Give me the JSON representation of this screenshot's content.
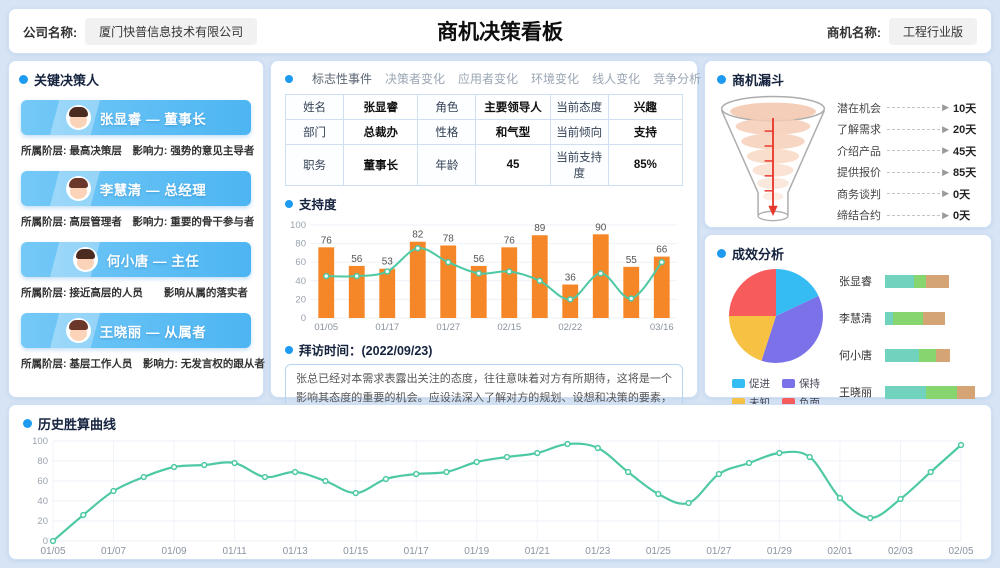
{
  "page": {
    "background": "#d7e4f5",
    "accent": "#1e9bf0"
  },
  "header": {
    "company_label": "公司名称:",
    "company_value": "厦门快普信息技术有限公司",
    "title": "商机决策看板",
    "opportunity_label": "商机名称:",
    "opportunity_value": "工程行业版"
  },
  "decision_panel": {
    "title": "关键决策人",
    "people": [
      {
        "banner": "张显睿 — 董事长",
        "info": "所属阶层: 最高决策层　影响力: 强势的意见主导者",
        "gender": "m"
      },
      {
        "banner": "李慧清 — 总经理",
        "info": "所属阶层: 高层管理者　影响力: 重要的骨干参与者",
        "gender": "f"
      },
      {
        "banner": "何小唐 — 主任",
        "info": "所属阶层: 接近高层的人员　　影响从属的落实者",
        "gender": "m"
      },
      {
        "banner": "王晓丽 — 从属者",
        "info": "所属阶层: 基层工作人员　影响力: 无发言权的跟从者",
        "gender": "f"
      }
    ]
  },
  "tabs_panel": {
    "tabs": [
      {
        "label": "标志性事件",
        "slug": "landmark-events",
        "active": true
      },
      {
        "label": "决策者变化",
        "slug": "decision-maker-change",
        "active": false
      },
      {
        "label": "应用者变化",
        "slug": "user-change",
        "active": false
      },
      {
        "label": "环境变化",
        "slug": "environment-change",
        "active": false
      },
      {
        "label": "线人变化",
        "slug": "informant-change",
        "active": false
      },
      {
        "label": "竞争分析",
        "slug": "competition-analysis",
        "active": false
      }
    ],
    "profile_rows": [
      [
        "姓名",
        "张显睿",
        "角色",
        "主要领导人",
        "当前态度",
        "兴趣"
      ],
      [
        "部门",
        "总裁办",
        "性格",
        "和气型",
        "当前倾向",
        "支持"
      ],
      [
        "职务",
        "董事长",
        "年龄",
        "45",
        "当前支持度",
        "85%"
      ]
    ],
    "support_title": "支持度",
    "visit_title": "拜访时间：(2022/09/23)",
    "visit_text": "张总已经对本需求表露出关注的态度，往往意味着对方有所期待，这将是一个影响其态度的重要的机会。应设法深入了解对方的规划、设想和决策的要素，对其需求做出积极的回应，并留心竞争对手的动向。回应的策略应注意强化己方的优势，突出差异，陈述双赢的前景。目前对..."
  },
  "funnel_panel": {
    "title": "商机漏斗",
    "stages": [
      {
        "label": "潜在机会",
        "value": "10天"
      },
      {
        "label": "了解需求",
        "value": "20天"
      },
      {
        "label": "介绍产品",
        "value": "45天"
      },
      {
        "label": "提供报价",
        "value": "85天"
      },
      {
        "label": "商务谈判",
        "value": "0天"
      },
      {
        "label": "缔结合约",
        "value": "0天"
      }
    ]
  },
  "analysis_panel": {
    "title": "成效分析",
    "legend": [
      {
        "label": "促进",
        "color": "#35bdf3"
      },
      {
        "label": "保持",
        "color": "#7b72e9"
      },
      {
        "label": "未知",
        "color": "#f7c244"
      },
      {
        "label": "负面",
        "color": "#f85b5b"
      }
    ]
  },
  "history_panel": {
    "title": "历史胜算曲线"
  },
  "chart_data": [
    {
      "id": "support",
      "type": "bar",
      "title": "支持度",
      "values": [
        76,
        56,
        53,
        82,
        78,
        56,
        76,
        89,
        36,
        90,
        55,
        66
      ],
      "line_series": {
        "name": "趋势",
        "values": [
          45,
          45,
          50,
          75,
          60,
          48,
          50,
          40,
          20,
          48,
          21,
          60
        ]
      },
      "x_tick_labels": [
        "01/05",
        "01/17",
        "01/27",
        "02/15",
        "02/22",
        "03/16"
      ],
      "x_tick_positions": [
        0,
        2,
        4,
        6,
        8,
        11
      ],
      "ylim": [
        0,
        100
      ],
      "yticks": [
        0,
        20,
        40,
        60,
        80,
        100
      ],
      "bar_color": "#f68728",
      "line_color": "#4ec9a4",
      "grid": true,
      "legend_position": "none"
    },
    {
      "id": "effect_pie",
      "type": "pie",
      "title": "成效分析",
      "slices": [
        {
          "label": "促进",
          "value": 18,
          "color": "#35bdf3"
        },
        {
          "label": "保持",
          "value": 37,
          "color": "#7b72e9"
        },
        {
          "label": "未知",
          "value": 20,
          "color": "#f7c244"
        },
        {
          "label": "负面",
          "value": 25,
          "color": "#f85b5b"
        }
      ],
      "legend_position": "bottom"
    },
    {
      "id": "effect_bars",
      "type": "bar",
      "subtype": "horizontal-stacked",
      "categories": [
        "张显睿",
        "李慧清",
        "何小唐",
        "王晓丽"
      ],
      "series": [
        {
          "name": "segment-1",
          "color": "#71d2be",
          "values": [
            37,
            10,
            44,
            52
          ]
        },
        {
          "name": "segment-2",
          "color": "#86d56f",
          "values": [
            16,
            38,
            21,
            40
          ]
        },
        {
          "name": "segment-3",
          "color": "#d4a474",
          "values": [
            29,
            29,
            18,
            23
          ]
        }
      ],
      "xmax": 120
    },
    {
      "id": "history",
      "type": "line",
      "title": "历史胜算曲线",
      "values": [
        0,
        26,
        50,
        64,
        74,
        76,
        78,
        64,
        69,
        60,
        48,
        62,
        67,
        69,
        79,
        84,
        88,
        97,
        93,
        69,
        47,
        38,
        67,
        78,
        88,
        84,
        43,
        23,
        42,
        69,
        96
      ],
      "x_tick_labels": [
        "01/05",
        "01/07",
        "01/09",
        "01/11",
        "01/13",
        "01/15",
        "01/17",
        "01/19",
        "01/21",
        "01/23",
        "01/25",
        "01/27",
        "01/29",
        "02/01",
        "02/03",
        "02/05"
      ],
      "x_tick_positions": [
        0,
        2,
        4,
        6,
        8,
        10,
        12,
        14,
        16,
        18,
        20,
        22,
        24,
        26,
        28,
        30
      ],
      "ylim": [
        0,
        100
      ],
      "yticks": [
        0,
        20,
        40,
        60,
        80,
        100
      ],
      "line_color": "#4ec9a4",
      "grid": true,
      "legend_position": "none"
    }
  ]
}
